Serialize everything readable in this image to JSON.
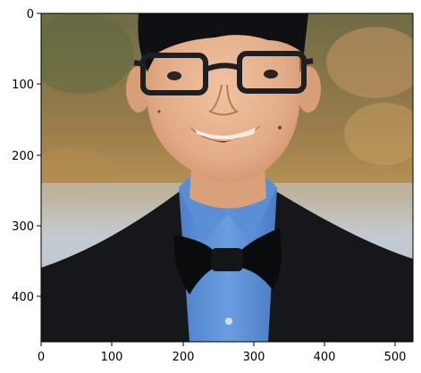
{
  "figure": {
    "image_subject": "portrait",
    "x_ticks": [
      "0",
      "100",
      "200",
      "300",
      "400",
      "500"
    ],
    "y_ticks": [
      "0",
      "100",
      "200",
      "300",
      "400"
    ],
    "colors": {
      "axes": "#000000",
      "shirt": "#5b8fd6",
      "suit": "#121417",
      "bow_tie": "#08090b",
      "skin": "#e4b08d",
      "hair": "#0e0f12",
      "glasses": "#1f2024",
      "background_top": "#7f7a52",
      "background_water": "#bcc3cb"
    }
  }
}
